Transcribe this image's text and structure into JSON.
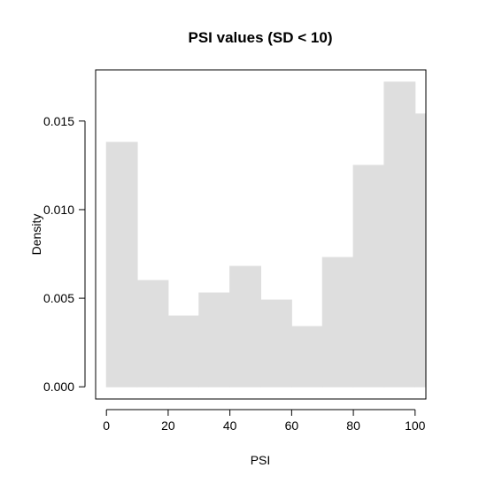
{
  "chart_data": {
    "type": "bar",
    "title": "PSI values (SD < 10)",
    "xlabel": "PSI",
    "ylabel": "Density",
    "bins": [
      {
        "x0": 0,
        "x1": 10,
        "density": 0.0138
      },
      {
        "x0": 10,
        "x1": 20,
        "density": 0.006
      },
      {
        "x0": 20,
        "x1": 30,
        "density": 0.004
      },
      {
        "x0": 30,
        "x1": 40,
        "density": 0.0053
      },
      {
        "x0": 40,
        "x1": 50,
        "density": 0.0068
      },
      {
        "x0": 50,
        "x1": 60,
        "density": 0.0049
      },
      {
        "x0": 60,
        "x1": 70,
        "density": 0.0034
      },
      {
        "x0": 70,
        "x1": 80,
        "density": 0.0073
      },
      {
        "x0": 80,
        "x1": 90,
        "density": 0.0125
      },
      {
        "x0": 90,
        "x1": 100,
        "density": 0.0172
      },
      {
        "x0": 100,
        "x1": 110,
        "density": 0.0154
      }
    ],
    "xlim": [
      -3.5,
      103.5
    ],
    "ylim": [
      -0.000688,
      0.017888
    ],
    "xticks": [
      0,
      20,
      40,
      60,
      80,
      100
    ],
    "xtick_labels": [
      "0",
      "20",
      "40",
      "60",
      "80",
      "100"
    ],
    "yticks": [
      0,
      0.005,
      0.01,
      0.015
    ],
    "ytick_labels": [
      "0.000",
      "0.005",
      "0.010",
      "0.015"
    ],
    "bar_color": "#dedede",
    "grid": false,
    "legend": "none"
  }
}
